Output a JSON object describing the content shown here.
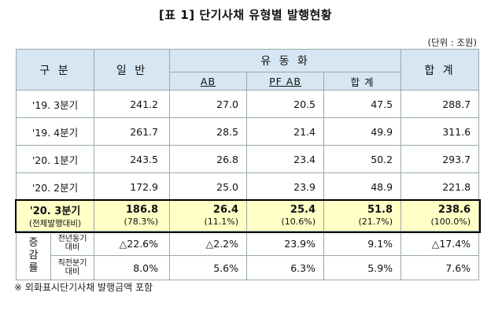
{
  "title": "[표 1] 단기사채 유형별 발행현황",
  "unit": "(단위 : 조원)",
  "headers": {
    "category": "구 분",
    "general": "일 반",
    "securitization": "유 동 화",
    "ab": "AB",
    "pfab": "PF AB",
    "sec_total": "합 계",
    "total": "합 계"
  },
  "rows": [
    {
      "label": "'19. 3분기",
      "general": "241.2",
      "ab": "27.0",
      "pfab": "20.5",
      "sec_total": "47.5",
      "total": "288.7"
    },
    {
      "label": "'19. 4분기",
      "general": "261.7",
      "ab": "28.5",
      "pfab": "21.4",
      "sec_total": "49.9",
      "total": "311.6"
    },
    {
      "label": "'20. 1분기",
      "general": "243.5",
      "ab": "26.8",
      "pfab": "23.4",
      "sec_total": "50.2",
      "total": "293.7"
    },
    {
      "label": "'20. 2분기",
      "general": "172.9",
      "ab": "25.0",
      "pfab": "23.9",
      "sec_total": "48.9",
      "total": "221.8"
    }
  ],
  "highlight": {
    "label": "'20. 3분기",
    "sublabel": "(전체발행대비)",
    "general": "186.8",
    "general_share": "(78.3%)",
    "ab": "26.4",
    "ab_share": "(11.1%)",
    "pfab": "25.4",
    "pfab_share": "(10.6%)",
    "sec_total": "51.8",
    "sec_total_share": "(21.7%)",
    "total": "238.6",
    "total_share": "(100.0%)"
  },
  "change": {
    "label": "증\n감\n률",
    "yoy": {
      "label": "전년동기\n대비",
      "general": "△22.6%",
      "ab": "△2.2%",
      "pfab": "23.9%",
      "sec_total": "9.1%",
      "total": "△17.4%"
    },
    "qoq": {
      "label": "직전분기\n대비",
      "general": "8.0%",
      "ab": "5.6%",
      "pfab": "6.3%",
      "sec_total": "5.9%",
      "total": "7.6%"
    }
  },
  "note": "※ 외화표시단기사채 발행금액 포함"
}
